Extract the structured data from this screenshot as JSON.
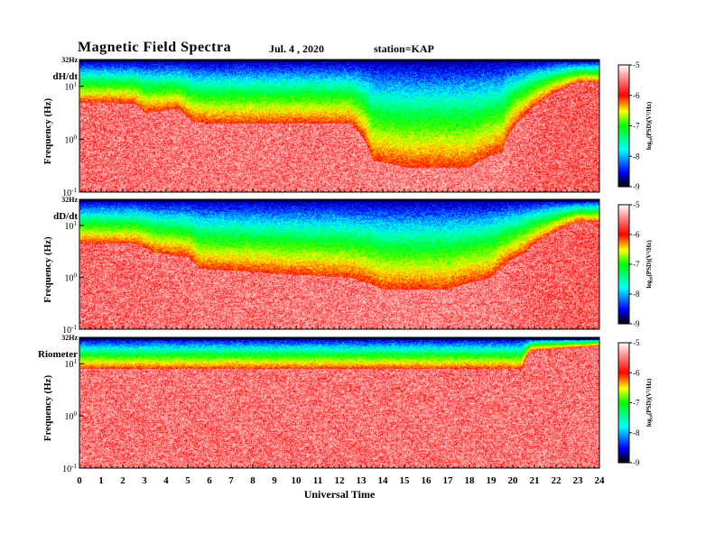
{
  "header": {
    "title": "Magnetic  Field  Spectra",
    "date": "Jul.  4  , 2020",
    "station": "station=KAP"
  },
  "chart_data": {
    "type": "heatmap",
    "xlabel": "Universal Time",
    "ylabel": "Frequency  (Hz)",
    "xlim": [
      0,
      24
    ],
    "x_ticks": [
      "0",
      "1",
      "2",
      "3",
      "4",
      "5",
      "6",
      "7",
      "8",
      "9",
      "10",
      "11",
      "12",
      "13",
      "14",
      "15",
      "16",
      "17",
      "18",
      "19",
      "20",
      "21",
      "22",
      "23",
      "24"
    ],
    "y_tick_top": "32Hz",
    "y_ticks": [
      {
        "base": "10",
        "exp": "1"
      },
      {
        "base": "10",
        "exp": "0"
      },
      {
        "base": "10",
        "exp": "-1"
      }
    ],
    "colorbar": {
      "label": "log₁₀(PSD)(V²/Hz)",
      "ticks": [
        "-5",
        "-6",
        "-7",
        "-8",
        "-9"
      ],
      "range": [
        -9,
        -5
      ],
      "colors": [
        "#000000",
        "#0000ff",
        "#00ffff",
        "#00ff00",
        "#ffff00",
        "#ff0000",
        "#ffffff"
      ]
    },
    "panels": [
      {
        "label": "dH/dt",
        "time_profile": [
          [
            0,
            5.0,
            0.5
          ],
          [
            2.5,
            4.8,
            0.55
          ],
          [
            3.0,
            3.2,
            0.6
          ],
          [
            4.5,
            3.8,
            0.62
          ],
          [
            5.2,
            2.2,
            0.7
          ],
          [
            6.0,
            2.0,
            0.7
          ],
          [
            8.0,
            2.0,
            0.68
          ],
          [
            10.0,
            2.0,
            0.65
          ],
          [
            12.5,
            2.0,
            0.65
          ],
          [
            13.5,
            0.4,
            0.9
          ],
          [
            15.0,
            0.3,
            0.95
          ],
          [
            18.0,
            0.3,
            0.95
          ],
          [
            19.5,
            0.6,
            0.9
          ],
          [
            20.6,
            3.0,
            0.5
          ],
          [
            21.5,
            6.0,
            0.2
          ],
          [
            23.0,
            12.0,
            0.1
          ],
          [
            24,
            12.0,
            0.1
          ]
        ]
      },
      {
        "label": "dD/dt",
        "time_profile": [
          [
            0,
            4.5,
            0.4
          ],
          [
            2.5,
            4.5,
            0.45
          ],
          [
            3.5,
            3.0,
            0.55
          ],
          [
            5.0,
            2.5,
            0.6
          ],
          [
            5.5,
            1.5,
            0.7
          ],
          [
            9.0,
            1.2,
            0.7
          ],
          [
            12.5,
            1.0,
            0.8
          ],
          [
            14.0,
            0.6,
            0.9
          ],
          [
            17.0,
            0.6,
            0.9
          ],
          [
            19.0,
            1.0,
            0.75
          ],
          [
            20.5,
            3.0,
            0.45
          ],
          [
            21.5,
            6.0,
            0.2
          ],
          [
            23.0,
            12.0,
            0.1
          ],
          [
            24,
            12.0,
            0.1
          ]
        ]
      },
      {
        "label": "Riometer",
        "time_profile": [
          [
            0,
            8.0,
            0.1
          ],
          [
            20.4,
            8.0,
            0.1
          ],
          [
            20.8,
            18.0,
            0.05
          ],
          [
            24,
            22.0,
            0.05
          ]
        ]
      }
    ]
  }
}
